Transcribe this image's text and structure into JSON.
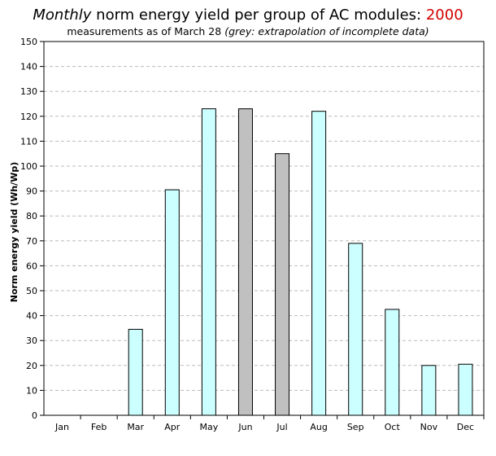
{
  "title": {
    "lead": "Monthly",
    "main": "norm energy yield per group of AC modules: ",
    "year": "2000"
  },
  "subtitle": {
    "main": "measurements as of March 28 ",
    "note": "(grey: extrapolation of incomplete data)"
  },
  "colors": {
    "measured": "#ccffff",
    "extrapolated": "#c0c0c0",
    "year": "#d40000",
    "grid": "#bbbbbb"
  },
  "chart_data": {
    "type": "bar",
    "title": "Monthly norm energy yield per group of AC modules: 2000",
    "ylabel": "Norm energy yield (Wh/Wp)",
    "xlabel": "",
    "ylim": [
      0,
      150
    ],
    "yticks": [
      0,
      10,
      20,
      30,
      40,
      50,
      60,
      70,
      80,
      90,
      100,
      110,
      120,
      130,
      140,
      150
    ],
    "grid": true,
    "categories": [
      "Jan",
      "Feb",
      "Mar",
      "Apr",
      "May",
      "Jun",
      "Jul",
      "Aug",
      "Sep",
      "Oct",
      "Nov",
      "Dec"
    ],
    "values": [
      0,
      0,
      34.5,
      90.5,
      123,
      123,
      105,
      122,
      69,
      42.5,
      20,
      20.5
    ],
    "extrapolated": [
      false,
      false,
      false,
      false,
      false,
      true,
      true,
      false,
      false,
      false,
      false,
      false
    ]
  }
}
